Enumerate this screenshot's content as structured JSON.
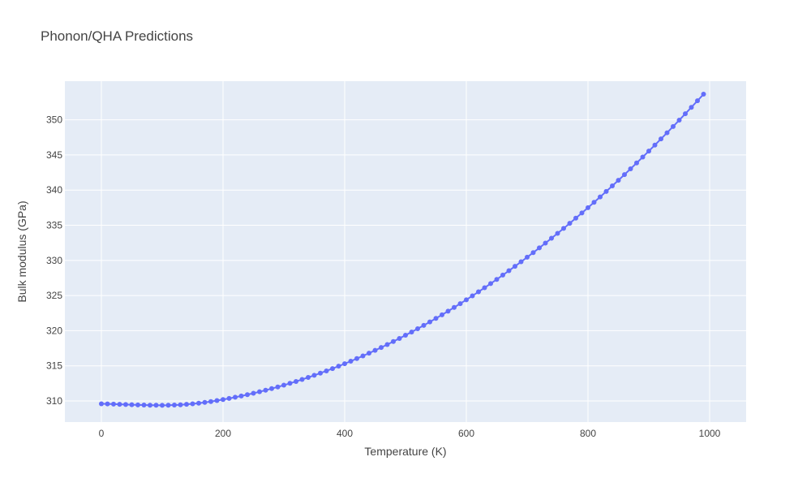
{
  "chart_data": {
    "type": "line",
    "title": "Phonon/QHA Predictions",
    "xlabel": "Temperature (K)",
    "ylabel": "Bulk modulus (GPa)",
    "xlim": [
      -60,
      1060
    ],
    "ylim": [
      307.0,
      355.5
    ],
    "x_ticks": [
      0,
      200,
      400,
      600,
      800,
      1000
    ],
    "y_ticks": [
      310,
      315,
      320,
      325,
      330,
      335,
      340,
      345,
      350
    ],
    "grid": true,
    "legend": "none",
    "colors": {
      "plot_bg": "#e5ecf6",
      "series": "#636efa",
      "grid": "#ffffff"
    },
    "series": [
      {
        "mode": "lines+markers",
        "x": [
          0,
          10,
          20,
          30,
          40,
          50,
          60,
          70,
          80,
          90,
          100,
          110,
          120,
          130,
          140,
          150,
          160,
          170,
          180,
          190,
          200,
          210,
          220,
          230,
          240,
          250,
          260,
          270,
          280,
          290,
          300,
          310,
          320,
          330,
          340,
          350,
          360,
          370,
          380,
          390,
          400,
          410,
          420,
          430,
          440,
          450,
          460,
          470,
          480,
          490,
          500,
          510,
          520,
          530,
          540,
          550,
          560,
          570,
          580,
          590,
          600,
          610,
          620,
          630,
          640,
          650,
          660,
          670,
          680,
          690,
          700,
          710,
          720,
          730,
          740,
          750,
          760,
          770,
          780,
          790,
          800,
          810,
          820,
          830,
          840,
          850,
          860,
          870,
          880,
          890,
          900,
          910,
          920,
          930,
          940,
          950,
          960,
          970,
          980,
          990
        ],
        "y": [
          309.6,
          309.58,
          309.56,
          309.53,
          309.5,
          309.47,
          309.44,
          309.42,
          309.4,
          309.39,
          309.38,
          309.39,
          309.42,
          309.46,
          309.52,
          309.6,
          309.69,
          309.8,
          309.92,
          310.06,
          310.2,
          310.36,
          310.53,
          310.71,
          310.9,
          311.1,
          311.31,
          311.53,
          311.76,
          312.0,
          312.25,
          312.51,
          312.78,
          313.06,
          313.35,
          313.65,
          313.96,
          314.28,
          314.61,
          314.95,
          315.3,
          315.66,
          316.03,
          316.41,
          316.8,
          317.2,
          317.61,
          318.03,
          318.46,
          318.9,
          319.35,
          319.81,
          320.28,
          320.76,
          321.25,
          321.75,
          322.26,
          322.78,
          323.31,
          323.85,
          324.4,
          324.96,
          325.53,
          326.11,
          326.7,
          327.3,
          327.91,
          328.53,
          329.16,
          329.8,
          330.45,
          331.11,
          331.78,
          332.46,
          333.15,
          333.85,
          334.56,
          335.28,
          336.01,
          336.75,
          337.5,
          338.26,
          339.03,
          339.81,
          340.6,
          341.4,
          342.21,
          343.03,
          343.86,
          344.7,
          345.55,
          346.41,
          347.28,
          348.16,
          349.05,
          349.95,
          350.86,
          351.78,
          352.71,
          353.65
        ]
      }
    ]
  }
}
